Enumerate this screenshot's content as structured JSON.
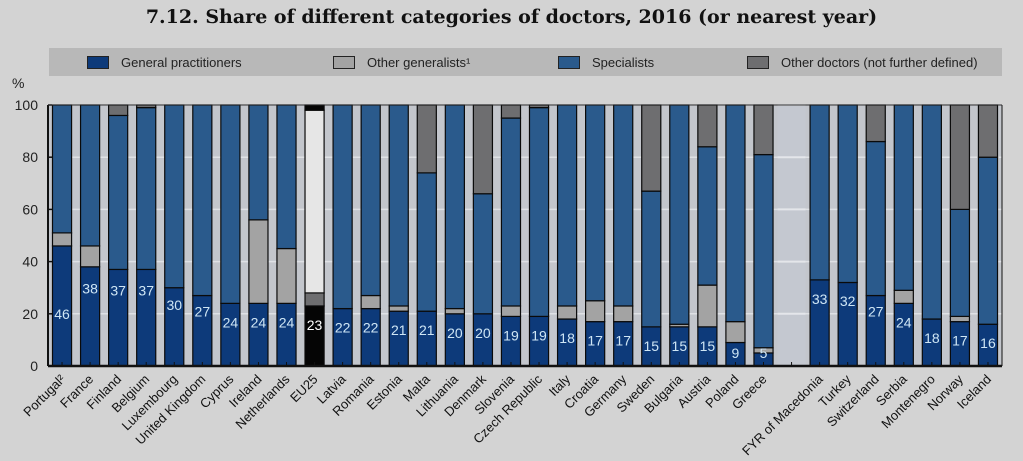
{
  "chart_data": {
    "type": "bar",
    "stacked": true,
    "title": "7.12.  Share of different categories of doctors, 2016 (or nearest year)",
    "ylabel": "%",
    "xlabel": "",
    "ylim": [
      0,
      100
    ],
    "yticks": [
      0,
      20,
      40,
      60,
      80,
      100
    ],
    "grid": true,
    "legend_position": "top",
    "categories": [
      "Portugal²",
      "France",
      "Finland",
      "Belgium",
      "Luxembourg",
      "United Kingdom",
      "Cyprus",
      "Ireland",
      "Netherlands",
      "EU25",
      "Latvia",
      "Romania",
      "Estonia",
      "Malta",
      "Lithuania",
      "Denmark",
      "Slovenia",
      "Czech Republic",
      "Italy",
      "Croatia",
      "Germany",
      "Sweden",
      "Bulgaria",
      "Austria",
      "Poland",
      "Greece",
      "",
      "FYR of Macedonia",
      "Turkey",
      "Switzerland",
      "Serbia",
      "Montenegro",
      "Norway",
      "Iceland"
    ],
    "highlight_category": "EU25",
    "series": [
      {
        "name": "General practitioners",
        "color": "#0d3a7a",
        "values": [
          46,
          38,
          37,
          37,
          30,
          27,
          24,
          24,
          24,
          23,
          22,
          22,
          21,
          21,
          20,
          20,
          19,
          19,
          18,
          17,
          17,
          15,
          15,
          15,
          9,
          5,
          null,
          33,
          32,
          27,
          24,
          18,
          17,
          16
        ]
      },
      {
        "name": "Other generalists¹",
        "color": "#a3a3a3",
        "values": [
          5,
          8,
          0,
          0,
          0,
          0,
          0,
          32,
          21,
          5,
          0,
          5,
          2,
          0,
          2,
          0,
          4,
          0,
          5,
          8,
          6,
          0,
          1,
          16,
          8,
          2,
          null,
          0,
          0,
          0,
          5,
          0,
          2,
          0
        ]
      },
      {
        "name": "Specialists",
        "color": "#2a5a8c",
        "values": [
          49,
          54,
          59,
          62,
          70,
          73,
          76,
          44,
          55,
          70,
          78,
          73,
          77,
          53,
          78,
          46,
          72,
          80,
          77,
          75,
          77,
          52,
          84,
          53,
          83,
          74,
          null,
          67,
          68,
          59,
          71,
          82,
          41,
          64
        ]
      },
      {
        "name": "Other doctors (not further defined)",
        "color": "#6e6e70",
        "values": [
          0,
          0,
          4,
          1,
          0,
          0,
          0,
          0,
          0,
          2,
          0,
          0,
          0,
          26,
          0,
          34,
          5,
          1,
          0,
          0,
          0,
          33,
          0,
          16,
          0,
          19,
          null,
          0,
          0,
          14,
          0,
          0,
          40,
          20
        ]
      }
    ],
    "data_labels": [
      "46",
      "38",
      "37",
      "37",
      "30",
      "27",
      "24",
      "24",
      "24",
      "23",
      "22",
      "22",
      "21",
      "21",
      "20",
      "20",
      "19",
      "19",
      "18",
      "17",
      "17",
      "15",
      "15",
      "15",
      "9",
      "5",
      "",
      "33",
      "32",
      "27",
      "24",
      "18",
      "17",
      "16"
    ]
  }
}
